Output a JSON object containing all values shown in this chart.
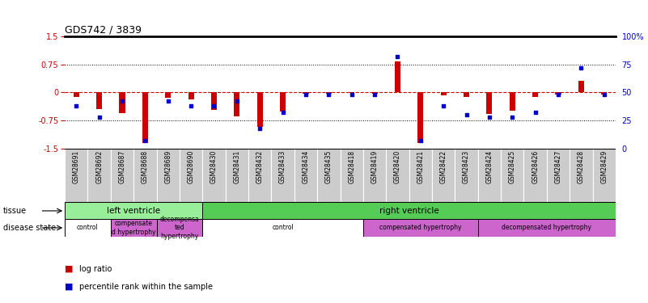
{
  "title": "GDS742 / 3839",
  "samples": [
    "GSM28691",
    "GSM28692",
    "GSM28687",
    "GSM28688",
    "GSM28689",
    "GSM28690",
    "GSM28430",
    "GSM28431",
    "GSM28432",
    "GSM28433",
    "GSM28434",
    "GSM28435",
    "GSM28418",
    "GSM28419",
    "GSM28420",
    "GSM28421",
    "GSM28422",
    "GSM28423",
    "GSM28424",
    "GSM28425",
    "GSM28426",
    "GSM28427",
    "GSM28428",
    "GSM28429"
  ],
  "log_ratio": [
    -0.12,
    -0.45,
    -0.55,
    -1.35,
    -0.15,
    -0.18,
    -0.48,
    -0.65,
    -0.92,
    -0.52,
    -0.04,
    -0.03,
    -0.02,
    -0.03,
    0.82,
    -1.35,
    -0.08,
    -0.12,
    -0.58,
    -0.5,
    -0.12,
    -0.06,
    0.32,
    -0.06
  ],
  "percentile_rank": [
    38,
    28,
    42,
    7,
    42,
    38,
    38,
    42,
    18,
    32,
    48,
    48,
    48,
    48,
    82,
    7,
    38,
    30,
    28,
    28,
    32,
    48,
    72,
    48
  ],
  "ylim_left": [
    -1.5,
    1.5
  ],
  "ylim_right": [
    0,
    100
  ],
  "yticks_left": [
    -1.5,
    -0.75,
    0,
    0.75,
    1.5
  ],
  "yticks_right": [
    0,
    25,
    50,
    75,
    100
  ],
  "ytick_labels_left": [
    "-1.5",
    "-0.75",
    "0",
    "0.75",
    "1.5"
  ],
  "ytick_labels_right": [
    "0",
    "25",
    "50",
    "75",
    "100%"
  ],
  "dotted_lines": [
    -0.75,
    0.75
  ],
  "bar_color": "#cc0000",
  "dot_color": "#0000cc",
  "background_color": "#ffffff",
  "tissue_groups": [
    {
      "label": "left ventricle",
      "start": 0,
      "end": 6,
      "color": "#99ee99"
    },
    {
      "label": "right ventricle",
      "start": 6,
      "end": 24,
      "color": "#55cc55"
    }
  ],
  "disease_groups": [
    {
      "label": "control",
      "start": 0,
      "end": 2,
      "color": "#ffffff"
    },
    {
      "label": "compensate\nd hypertrophy",
      "start": 2,
      "end": 4,
      "color": "#cc66cc"
    },
    {
      "label": "decompensa\nted\nhypertrophy",
      "start": 4,
      "end": 6,
      "color": "#cc66cc"
    },
    {
      "label": "control",
      "start": 6,
      "end": 13,
      "color": "#ffffff"
    },
    {
      "label": "compensated hypertrophy",
      "start": 13,
      "end": 18,
      "color": "#cc66cc"
    },
    {
      "label": "decompensated hypertrophy",
      "start": 18,
      "end": 24,
      "color": "#cc66cc"
    }
  ],
  "axis_label_color_left": "#cc0000",
  "axis_label_color_right": "#0000cc",
  "label_bg_color": "#cccccc"
}
